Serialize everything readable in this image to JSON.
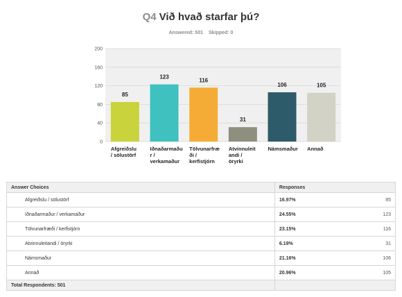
{
  "question": {
    "number": "Q4",
    "text": "Við hvað starfar þú?"
  },
  "stats": {
    "answered": "Answered: 501",
    "skipped": "Skipped: 0"
  },
  "chart_data": {
    "type": "bar",
    "categories": [
      "Afgreiðslu / sölustörf",
      "Iðnaðarmaður / verkamaður",
      "Tölvunarfræði / kerfistjórn",
      "Atvinnuleitandi / öryrki",
      "Námsmaður",
      "Annað"
    ],
    "category_labels": [
      [
        "Afgreiðslu",
        "/ sölustörf"
      ],
      [
        "Iðnaðarmaðu",
        "r /",
        "verkamaður"
      ],
      [
        "Tölvunarfræ",
        "ði /",
        "kerfistjórn"
      ],
      [
        "Atvinnuleit",
        "andi /",
        "öryrki"
      ],
      [
        "Námsmaður"
      ],
      [
        "Annað"
      ]
    ],
    "values": [
      85,
      123,
      116,
      31,
      106,
      105
    ],
    "colors": [
      "#c9d33b",
      "#3fc1bf",
      "#f5ac36",
      "#8e8f7e",
      "#2d5b69",
      "#d3d2c6"
    ],
    "ylim": [
      0,
      200
    ],
    "yticks": [
      0,
      40,
      80,
      120,
      160,
      200
    ],
    "grid": true
  },
  "table": {
    "headers": {
      "choice": "Answer Choices",
      "responses": "Responses"
    },
    "rows": [
      {
        "choice": "Afgreiðslu / sölustörf",
        "percent": "16.97%",
        "count": "85"
      },
      {
        "choice": "Iðnaðarmaður / verkamaður",
        "percent": "24.55%",
        "count": "123"
      },
      {
        "choice": "Tölvunarfræði / kerfistjórn",
        "percent": "23.15%",
        "count": "116"
      },
      {
        "choice": "Atvinnuleitandi / öryrki",
        "percent": "6.19%",
        "count": "31"
      },
      {
        "choice": "Námsmaður",
        "percent": "21.16%",
        "count": "106"
      },
      {
        "choice": "Annað",
        "percent": "20.96%",
        "count": "105"
      }
    ],
    "footer": "Total Respondents: 501"
  }
}
